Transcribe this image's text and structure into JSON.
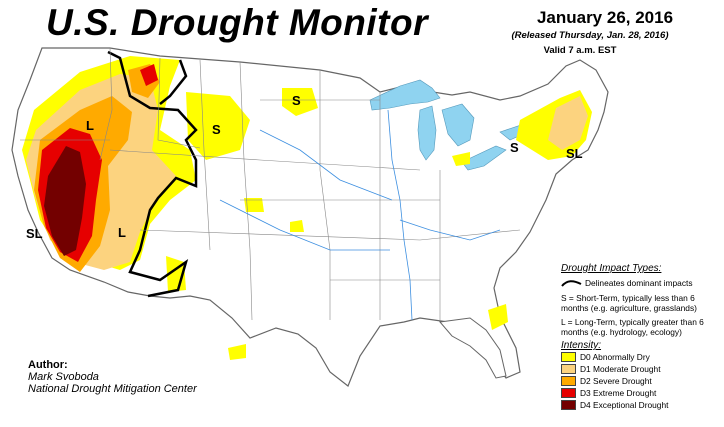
{
  "header": {
    "title": "U.S. Drought Monitor",
    "date": "January 26, 2016",
    "released": "(Released Thursday, Jan. 28, 2016)",
    "valid": "Valid 7 a.m. EST"
  },
  "author": {
    "heading": "Author:",
    "name": "Mark Svoboda",
    "org": "National Drought Mitigation Center"
  },
  "legend": {
    "impact_heading": "Drought Impact Types:",
    "delineates": "Delineates dominant impacts",
    "short_term": "S = Short-Term, typically less than 6 months (e.g. agriculture, grasslands)",
    "long_term": "L = Long-Term, typically greater than 6 months (e.g. hydrology, ecology)",
    "intensity_heading": "Intensity:",
    "categories": [
      {
        "label": "D0 Abnormally Dry",
        "color": "#ffff00"
      },
      {
        "label": "D1 Moderate Drought",
        "color": "#fcd37f"
      },
      {
        "label": "D2 Severe Drought",
        "color": "#ffaa00"
      },
      {
        "label": "D3 Extreme Drought",
        "color": "#e60000"
      },
      {
        "label": "D4 Exceptional Drought",
        "color": "#730000"
      }
    ]
  },
  "map_labels": {
    "west_long": "L",
    "northwest_short": "S",
    "northplains_short": "S",
    "california": "SL",
    "nevada_long": "L",
    "newyork_short": "S",
    "newengland": "SL"
  },
  "colors": {
    "water": "#8fd3f0",
    "land": "#ffffff",
    "boundary": "#555555",
    "river": "#3d8fe0"
  }
}
